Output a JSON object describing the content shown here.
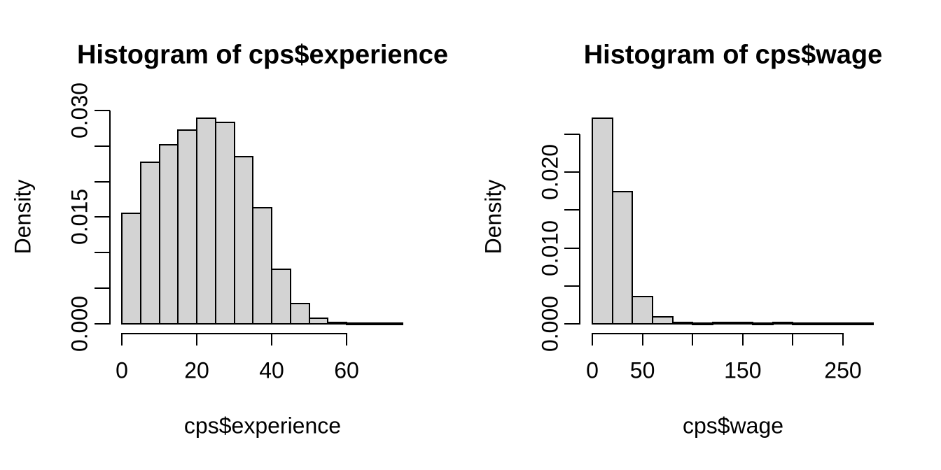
{
  "figure": {
    "background": "#ffffff",
    "bar_fill": "#d3d3d3",
    "bar_border": "#000000",
    "text_color": "#000000"
  },
  "chart_data": [
    {
      "type": "bar",
      "subtype": "histogram",
      "title": "Histogram of cps$experience",
      "xlabel": "cps$experience",
      "ylabel": "Density",
      "xlim": [
        0,
        75
      ],
      "ylim": [
        0,
        0.03
      ],
      "grid": false,
      "legend": false,
      "bins": {
        "width": 5,
        "edges": [
          0,
          5,
          10,
          15,
          20,
          25,
          30,
          35,
          40,
          45,
          50,
          55,
          60,
          65,
          70,
          75
        ],
        "densities": [
          0.0155,
          0.0227,
          0.0252,
          0.0272,
          0.0289,
          0.0283,
          0.0235,
          0.0163,
          0.0077,
          0.0029,
          0.0008,
          0.0002,
          0.0001,
          5e-05,
          5e-05
        ]
      },
      "x_axis": {
        "ticks": [
          {
            "value": 0,
            "label": "0"
          },
          {
            "value": 20,
            "label": "20"
          },
          {
            "value": 40,
            "label": "40"
          },
          {
            "value": 60,
            "label": "60"
          }
        ]
      },
      "y_axis": {
        "ticks": [
          {
            "value": 0.0,
            "label": "0.000"
          },
          {
            "value": 0.005,
            "label": ""
          },
          {
            "value": 0.01,
            "label": ""
          },
          {
            "value": 0.015,
            "label": "0.015"
          },
          {
            "value": 0.02,
            "label": ""
          },
          {
            "value": 0.025,
            "label": ""
          },
          {
            "value": 0.03,
            "label": "0.030"
          }
        ]
      }
    },
    {
      "type": "bar",
      "subtype": "histogram",
      "title": "Histogram of cps$wage",
      "xlabel": "cps$wage",
      "ylabel": "Density",
      "xlim": [
        0,
        280
      ],
      "ylim": [
        0,
        0.025
      ],
      "grid": false,
      "legend": false,
      "bins": {
        "width": 20,
        "edges": [
          0,
          20,
          40,
          60,
          80,
          100,
          120,
          140,
          160,
          180,
          200,
          220,
          240,
          260,
          280
        ],
        "densities": [
          0.0271,
          0.0174,
          0.0036,
          0.0009,
          0.0002,
          0.0001,
          0.0002,
          0.0002,
          0.0001,
          0.0002,
          5e-05,
          5e-05,
          5e-05,
          0.0001
        ]
      },
      "x_axis": {
        "ticks": [
          {
            "value": 0,
            "label": "0"
          },
          {
            "value": 50,
            "label": "50"
          },
          {
            "value": 100,
            "label": ""
          },
          {
            "value": 150,
            "label": "150"
          },
          {
            "value": 200,
            "label": ""
          },
          {
            "value": 250,
            "label": "250"
          }
        ]
      },
      "y_axis": {
        "ticks": [
          {
            "value": 0.0,
            "label": "0.000"
          },
          {
            "value": 0.005,
            "label": ""
          },
          {
            "value": 0.01,
            "label": "0.010"
          },
          {
            "value": 0.015,
            "label": ""
          },
          {
            "value": 0.02,
            "label": "0.020"
          },
          {
            "value": 0.025,
            "label": ""
          }
        ]
      }
    }
  ]
}
